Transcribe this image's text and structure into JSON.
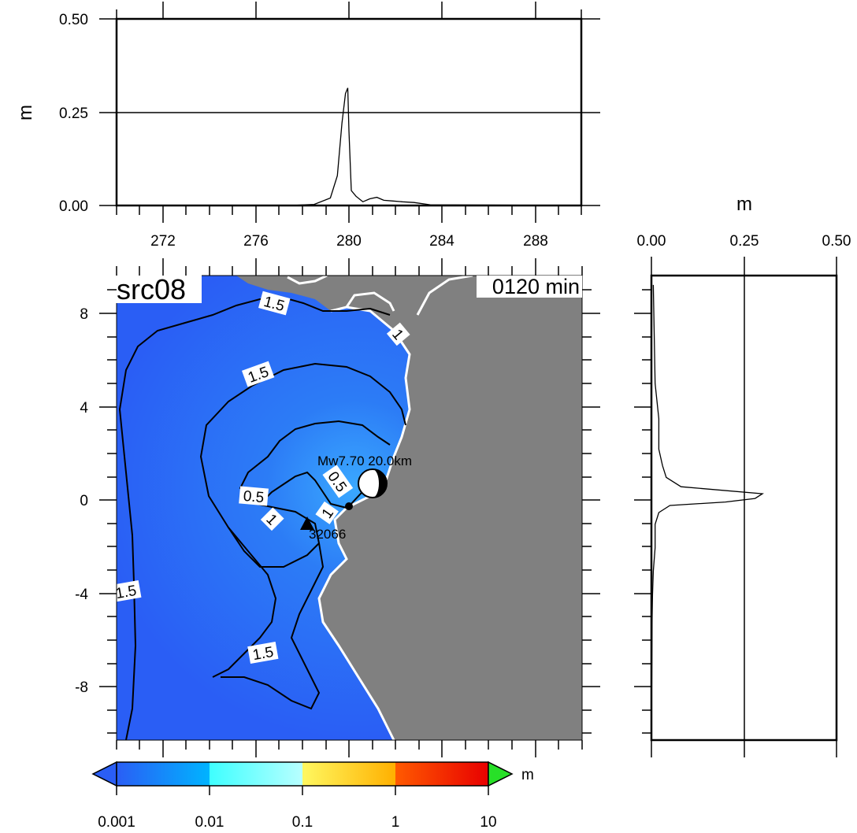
{
  "source_id": "src08",
  "time_label": "0120 min",
  "event_label": "Mw7.70  20.0km",
  "station_label": "32066",
  "unit": "m",
  "colorbar": {
    "ticks": [
      "0.001",
      "0.01",
      "0.1",
      "1",
      "10"
    ],
    "unit": "m",
    "colors": [
      "#2a5ef5",
      "#00b4ff",
      "#3effff",
      "#fff860",
      "#ffb000",
      "#ff5a00",
      "#e80000",
      "#28e028"
    ]
  },
  "map": {
    "y_ticks": [
      "8",
      "4",
      "0",
      "-4",
      "-8"
    ],
    "sea_color": "#2c66f0",
    "land_color": "#808080",
    "contour_labels": [
      "1.5",
      "1",
      "1.5",
      "0.5",
      "0.5",
      "1",
      "1",
      "1.5",
      "1.5"
    ]
  },
  "chart_data": [
    {
      "type": "line",
      "title": "",
      "xlabel": "",
      "ylabel": "m",
      "xlim": [
        270,
        290
      ],
      "ylim": [
        0,
        0.5
      ],
      "x_ticks": [
        "272",
        "276",
        "280",
        "284",
        "288"
      ],
      "y_ticks": [
        "0.00",
        "0.25",
        "0.50"
      ],
      "hline": 0.25,
      "series": [
        {
          "x": [
            270,
            277.5,
            278.5,
            279.2,
            279.5,
            279.7,
            279.85,
            279.95,
            280.0,
            280.1,
            280.3,
            280.6,
            280.9,
            281.2,
            281.5,
            281.9,
            282.3,
            282.8,
            283.5,
            290
          ],
          "values": [
            0,
            0,
            0.003,
            0.02,
            0.08,
            0.22,
            0.3,
            0.315,
            0.2,
            0.04,
            0.025,
            0.01,
            0.018,
            0.022,
            0.014,
            0.012,
            0.01,
            0.008,
            0.002,
            0
          ]
        }
      ]
    },
    {
      "type": "line",
      "title": "",
      "xlabel": "m",
      "ylabel": "",
      "xlim": [
        0,
        0.5
      ],
      "x_ticks": [
        "0.00",
        "0.25",
        "0.50"
      ],
      "ylim": [
        -10.2,
        9.6
      ],
      "vline": 0.25,
      "series": [
        {
          "y": [
            9.2,
            5,
            3.5,
            2.2,
            1.5,
            1.0,
            0.6,
            0.3,
            0.1,
            -0.05,
            -0.2,
            -0.5,
            -1.0,
            -2.0,
            -3.0,
            -4.0,
            -5,
            -10
          ],
          "values": [
            0.005,
            0.01,
            0.02,
            0.02,
            0.03,
            0.04,
            0.08,
            0.3,
            0.28,
            0.2,
            0.05,
            0.02,
            0.01,
            0.01,
            0.005,
            0.003,
            0.002,
            0.0
          ]
        }
      ]
    }
  ]
}
